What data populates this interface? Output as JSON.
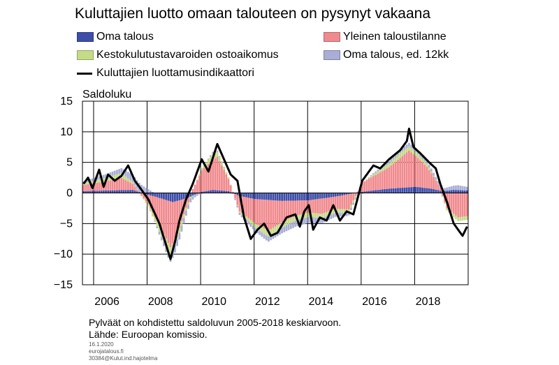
{
  "colors": {
    "oma_talous": "#3c4ea8",
    "yleinen": "#f08a8e",
    "kestokulutus": "#c4db88",
    "oma_12kk": "#a9aed6",
    "indikaattori": "#000000",
    "grid": "#000000"
  },
  "title": "Kuluttajien luotto omaan talouteen on pysynyt vakaana",
  "legend": {
    "oma_talous": "Oma talous",
    "yleinen": "Yleinen taloustilanne",
    "kestokulutus": "Kestokulutustavaroiden ostoaikomus",
    "oma_12kk": "Oma talous, ed. 12kk",
    "indikaattori": "Kuluttajien luottamusindikaattori"
  },
  "unit_label": "Saldoluku",
  "notes": {
    "line1": "Pylväät on kohdistettu saldoluvun 2005-2018 keskiarvoon.",
    "line2": "Lähde: Euroopan komissio.",
    "date": "16.1.2020",
    "site": "eurojatalous.fi",
    "code": "30384@Kulut.ind.hajotelma"
  },
  "chart_data": {
    "type": "bar",
    "stacked": true,
    "frequency": "monthly",
    "x_start": "2005-08",
    "x_end": "2019-12",
    "ylim": [
      -15,
      15
    ],
    "yticks": [
      15,
      10,
      5,
      0,
      -5,
      -10,
      -15
    ],
    "xticks": [
      "2006",
      "2008",
      "2010",
      "2012",
      "2014",
      "2016",
      "2018"
    ],
    "ylabel": "Saldoluku",
    "grid": true,
    "legend_position": "top",
    "series": [
      {
        "name": "Oma talous",
        "key": "oma_talous",
        "type": "bar",
        "anchors": [
          [
            "2005-08",
            0.3
          ],
          [
            "2006-06",
            0.4
          ],
          [
            "2007-06",
            0.5
          ],
          [
            "2008-01",
            -0.3
          ],
          [
            "2008-06",
            -0.8
          ],
          [
            "2008-12",
            -1.5
          ],
          [
            "2009-06",
            -0.9
          ],
          [
            "2010-01",
            0.2
          ],
          [
            "2010-06",
            0.5
          ],
          [
            "2011-01",
            0.3
          ],
          [
            "2011-06",
            -0.5
          ],
          [
            "2012-01",
            -1.0
          ],
          [
            "2013-01",
            -1.3
          ],
          [
            "2014-01",
            -1.2
          ],
          [
            "2015-01",
            -0.6
          ],
          [
            "2016-01",
            0.2
          ],
          [
            "2017-01",
            0.7
          ],
          [
            "2018-01",
            1.0
          ],
          [
            "2018-08",
            0.7
          ],
          [
            "2019-01",
            0.3
          ],
          [
            "2019-06",
            0.5
          ],
          [
            "2019-12",
            0.4
          ]
        ]
      },
      {
        "name": "Yleinen taloustilanne",
        "key": "yleinen",
        "type": "bar",
        "anchors": [
          [
            "2005-08",
            1.0
          ],
          [
            "2006-06",
            1.5
          ],
          [
            "2007-01",
            2.0
          ],
          [
            "2007-06",
            1.0
          ],
          [
            "2008-01",
            -1.5
          ],
          [
            "2008-06",
            -4.5
          ],
          [
            "2008-11",
            -7.5
          ],
          [
            "2009-03",
            -4.5
          ],
          [
            "2009-06",
            -1.5
          ],
          [
            "2010-01",
            3.5
          ],
          [
            "2010-08",
            5.5
          ],
          [
            "2011-01",
            2.0
          ],
          [
            "2011-06",
            -2.5
          ],
          [
            "2012-01",
            -4.0
          ],
          [
            "2012-07",
            -5.0
          ],
          [
            "2013-01",
            -3.5
          ],
          [
            "2013-07",
            -2.5
          ],
          [
            "2014-01",
            -2.0
          ],
          [
            "2014-07",
            -2.5
          ],
          [
            "2015-01",
            -2.0
          ],
          [
            "2015-07",
            -2.5
          ],
          [
            "2016-01",
            1.5
          ],
          [
            "2016-07",
            2.5
          ],
          [
            "2017-01",
            3.5
          ],
          [
            "2017-10",
            6.0
          ],
          [
            "2018-06",
            3.5
          ],
          [
            "2018-12",
            0.5
          ],
          [
            "2019-03",
            -2.5
          ],
          [
            "2019-08",
            -4.0
          ],
          [
            "2019-12",
            -3.8
          ]
        ]
      },
      {
        "name": "Kestokulutustavaroiden ostoaikomus",
        "key": "kestokulutus",
        "type": "bar",
        "anchors": [
          [
            "2005-08",
            0.3
          ],
          [
            "2007-01",
            0.8
          ],
          [
            "2008-01",
            -0.4
          ],
          [
            "2008-10",
            -1.5
          ],
          [
            "2009-06",
            -0.5
          ],
          [
            "2010-06",
            1.0
          ],
          [
            "2011-06",
            -0.3
          ],
          [
            "2012-06",
            -1.0
          ],
          [
            "2013-06",
            -0.8
          ],
          [
            "2014-06",
            -0.7
          ],
          [
            "2015-06",
            -0.6
          ],
          [
            "2016-06",
            0.3
          ],
          [
            "2017-06",
            0.8
          ],
          [
            "2018-06",
            0.5
          ],
          [
            "2019-06",
            -0.6
          ],
          [
            "2019-12",
            -0.6
          ]
        ]
      },
      {
        "name": "Oma talous, ed. 12kk",
        "key": "oma_12kk",
        "type": "bar",
        "anchors": [
          [
            "2005-08",
            0.3
          ],
          [
            "2007-01",
            0.8
          ],
          [
            "2007-09",
            1.5
          ],
          [
            "2008-06",
            -0.5
          ],
          [
            "2009-01",
            -1.2
          ],
          [
            "2009-06",
            -0.8
          ],
          [
            "2010-06",
            0.3
          ],
          [
            "2011-06",
            -0.3
          ],
          [
            "2012-06",
            -0.8
          ],
          [
            "2013-06",
            -1.0
          ],
          [
            "2014-06",
            -0.9
          ],
          [
            "2015-06",
            -0.5
          ],
          [
            "2016-06",
            0.2
          ],
          [
            "2017-06",
            0.6
          ],
          [
            "2018-06",
            0.5
          ],
          [
            "2019-01",
            0.4
          ],
          [
            "2019-08",
            0.8
          ],
          [
            "2019-12",
            0.6
          ]
        ]
      },
      {
        "name": "Kuluttajien luottamusindikaattori",
        "key": "indikaattori",
        "type": "line",
        "anchors": [
          [
            "2005-08",
            1.5
          ],
          [
            "2005-10",
            2.5
          ],
          [
            "2005-12",
            0.8
          ],
          [
            "2006-03",
            3.8
          ],
          [
            "2006-05",
            1.0
          ],
          [
            "2006-07",
            3.0
          ],
          [
            "2006-10",
            2.0
          ],
          [
            "2007-01",
            2.8
          ],
          [
            "2007-04",
            4.5
          ],
          [
            "2007-07",
            2.0
          ],
          [
            "2008-01",
            -1.0
          ],
          [
            "2008-06",
            -5.0
          ],
          [
            "2008-09",
            -8.5
          ],
          [
            "2008-11",
            -10.8
          ],
          [
            "2009-01",
            -8.0
          ],
          [
            "2009-03",
            -4.5
          ],
          [
            "2009-06",
            -1.0
          ],
          [
            "2009-09",
            1.5
          ],
          [
            "2010-01",
            5.5
          ],
          [
            "2010-04",
            3.5
          ],
          [
            "2010-08",
            8.0
          ],
          [
            "2010-11",
            5.5
          ],
          [
            "2011-02",
            3.0
          ],
          [
            "2011-05",
            2.0
          ],
          [
            "2011-08",
            -4.0
          ],
          [
            "2011-11",
            -7.5
          ],
          [
            "2012-02",
            -6.0
          ],
          [
            "2012-05",
            -5.0
          ],
          [
            "2012-08",
            -7.0
          ],
          [
            "2012-11",
            -6.5
          ],
          [
            "2013-03",
            -4.0
          ],
          [
            "2013-07",
            -3.5
          ],
          [
            "2013-09",
            -5.5
          ],
          [
            "2013-11",
            -3.0
          ],
          [
            "2014-01",
            -2.0
          ],
          [
            "2014-03",
            -6.0
          ],
          [
            "2014-06",
            -4.0
          ],
          [
            "2014-09",
            -4.5
          ],
          [
            "2014-12",
            -2.0
          ],
          [
            "2015-03",
            -4.5
          ],
          [
            "2015-06",
            -3.0
          ],
          [
            "2015-09",
            -3.5
          ],
          [
            "2016-01",
            2.0
          ],
          [
            "2016-06",
            4.5
          ],
          [
            "2016-09",
            4.0
          ],
          [
            "2017-01",
            5.5
          ],
          [
            "2017-06",
            7.0
          ],
          [
            "2017-09",
            8.5
          ],
          [
            "2017-10",
            10.5
          ],
          [
            "2017-12",
            7.5
          ],
          [
            "2018-03",
            6.5
          ],
          [
            "2018-07",
            5.0
          ],
          [
            "2018-10",
            4.0
          ],
          [
            "2018-12",
            1.5
          ],
          [
            "2019-03",
            -1.5
          ],
          [
            "2019-06",
            -5.0
          ],
          [
            "2019-08",
            -6.0
          ],
          [
            "2019-10",
            -7.0
          ],
          [
            "2019-12",
            -5.5
          ]
        ]
      }
    ]
  }
}
